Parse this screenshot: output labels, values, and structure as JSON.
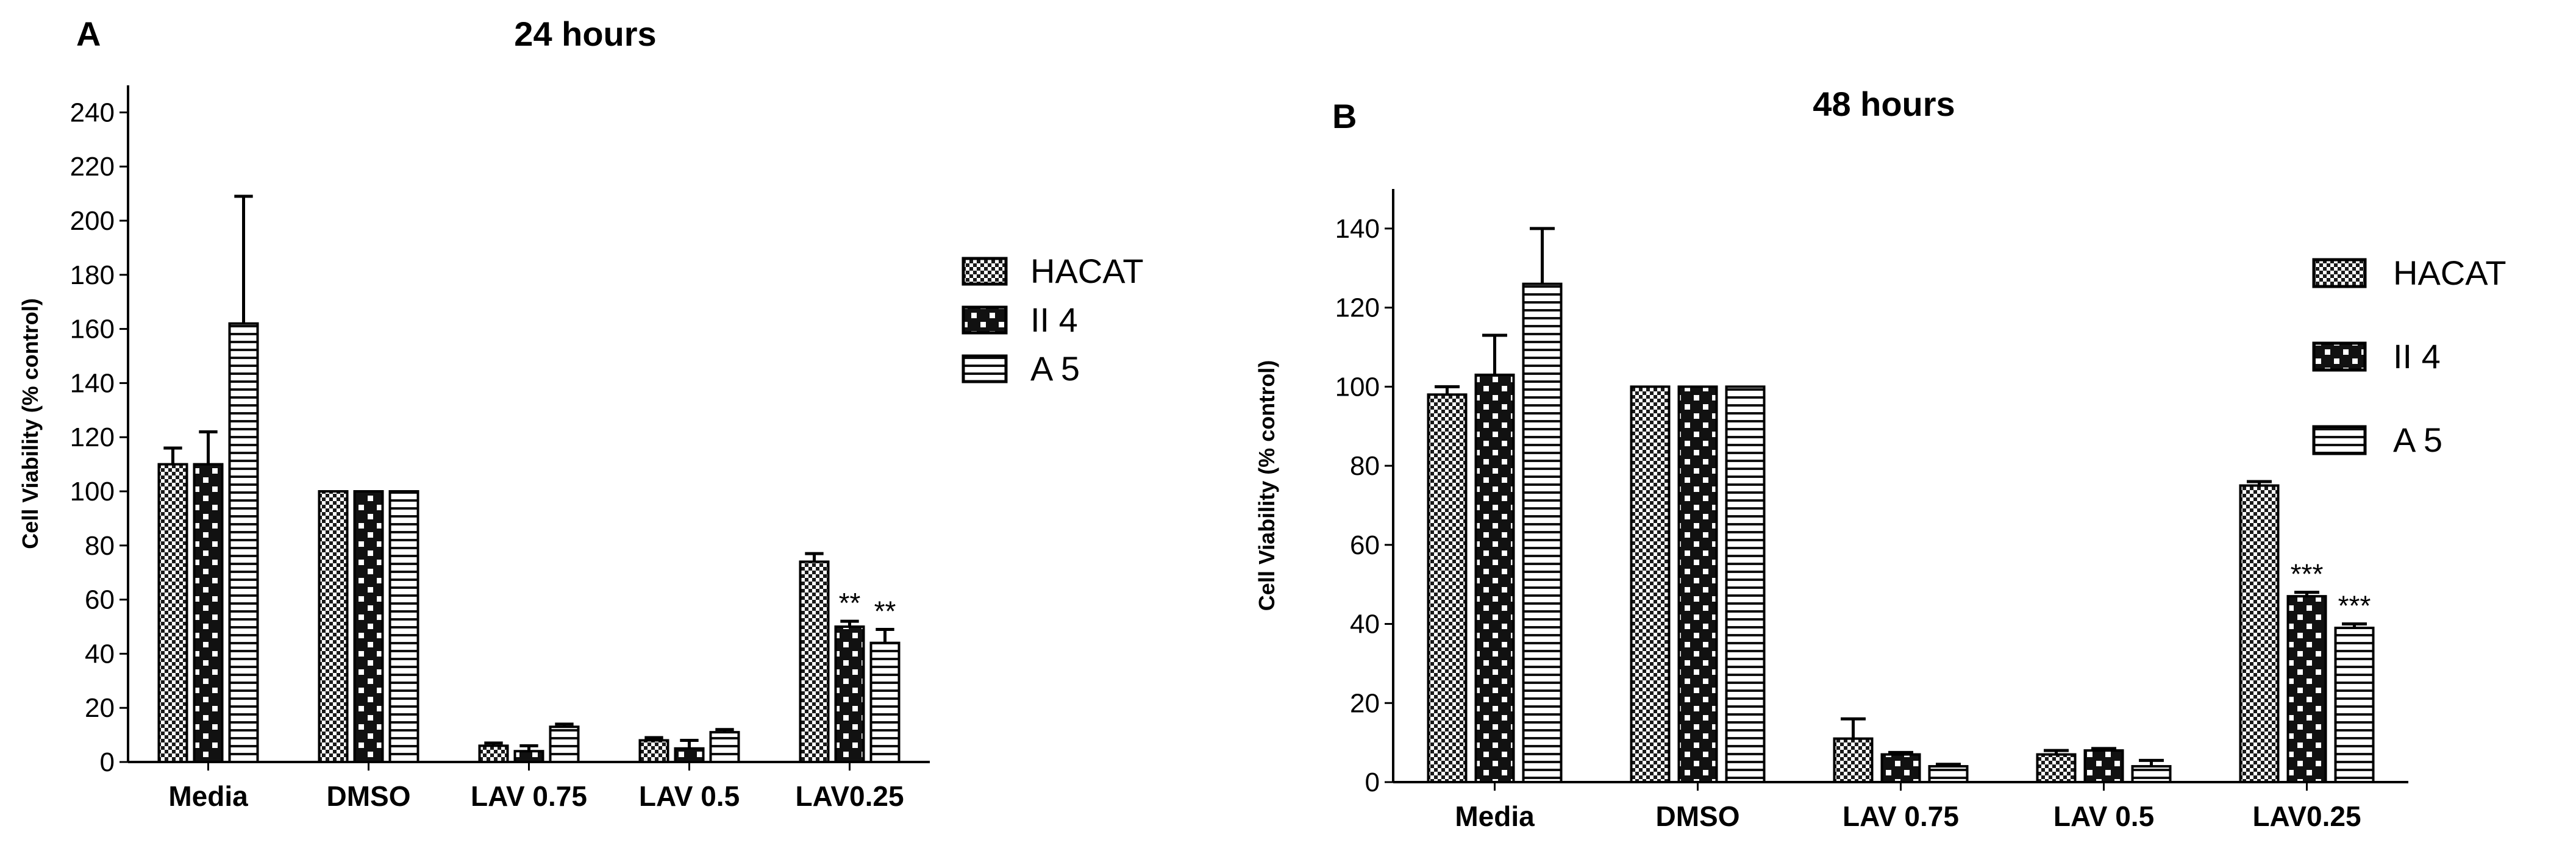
{
  "chart_data": [
    {
      "panel": "A",
      "type": "bar",
      "title": "24 hours",
      "xlabel": "",
      "ylabel": "Cell Viability (% control)",
      "ylim": [
        0,
        250
      ],
      "yticks": [
        0,
        20,
        40,
        60,
        80,
        100,
        120,
        140,
        160,
        180,
        200,
        220,
        240
      ],
      "grid": false,
      "legend": "right",
      "categories": [
        "Media",
        "DMSO",
        "LAV 0.75",
        "LAV 0.5",
        "LAV0.25"
      ],
      "series": [
        {
          "name": "HACAT",
          "pattern": "checker-fine",
          "values": [
            110,
            100,
            6,
            8,
            74
          ],
          "errors": [
            6,
            0,
            1,
            1,
            3
          ]
        },
        {
          "name": "II 4",
          "pattern": "checker-coarse",
          "values": [
            110,
            100,
            4,
            5,
            50
          ],
          "errors": [
            12,
            0,
            2,
            3,
            2
          ]
        },
        {
          "name": "A 5",
          "pattern": "horizontal-lines",
          "values": [
            162,
            100,
            13,
            11,
            44
          ],
          "errors": [
            47,
            0,
            1,
            1,
            5
          ]
        }
      ],
      "annotations": [
        {
          "category": "LAV0.25",
          "series": "II 4",
          "text": "**"
        },
        {
          "category": "LAV0.25",
          "series": "A 5",
          "text": "**"
        }
      ]
    },
    {
      "panel": "B",
      "type": "bar",
      "title": "48 hours",
      "xlabel": "",
      "ylabel": "Cell Viability (% control)",
      "ylim": [
        0,
        150
      ],
      "yticks": [
        0,
        20,
        40,
        60,
        80,
        100,
        120,
        140
      ],
      "grid": false,
      "legend": "right",
      "categories": [
        "Media",
        "DMSO",
        "LAV 0.75",
        "LAV 0.5",
        "LAV0.25"
      ],
      "series": [
        {
          "name": "HACAT",
          "pattern": "checker-fine",
          "values": [
            98,
            100,
            11,
            7,
            75
          ],
          "errors": [
            2,
            0,
            5,
            1,
            1
          ]
        },
        {
          "name": "II 4",
          "pattern": "checker-coarse",
          "values": [
            103,
            100,
            7,
            8,
            47
          ],
          "errors": [
            10,
            0,
            0.5,
            0.5,
            1
          ]
        },
        {
          "name": "A 5",
          "pattern": "horizontal-lines",
          "values": [
            126,
            100,
            4,
            4,
            39
          ],
          "errors": [
            14,
            0,
            0.5,
            1.5,
            1
          ]
        }
      ],
      "annotations": [
        {
          "category": "LAV0.25",
          "series": "II 4",
          "text": "***"
        },
        {
          "category": "LAV0.25",
          "series": "A 5",
          "text": "***"
        }
      ]
    }
  ]
}
